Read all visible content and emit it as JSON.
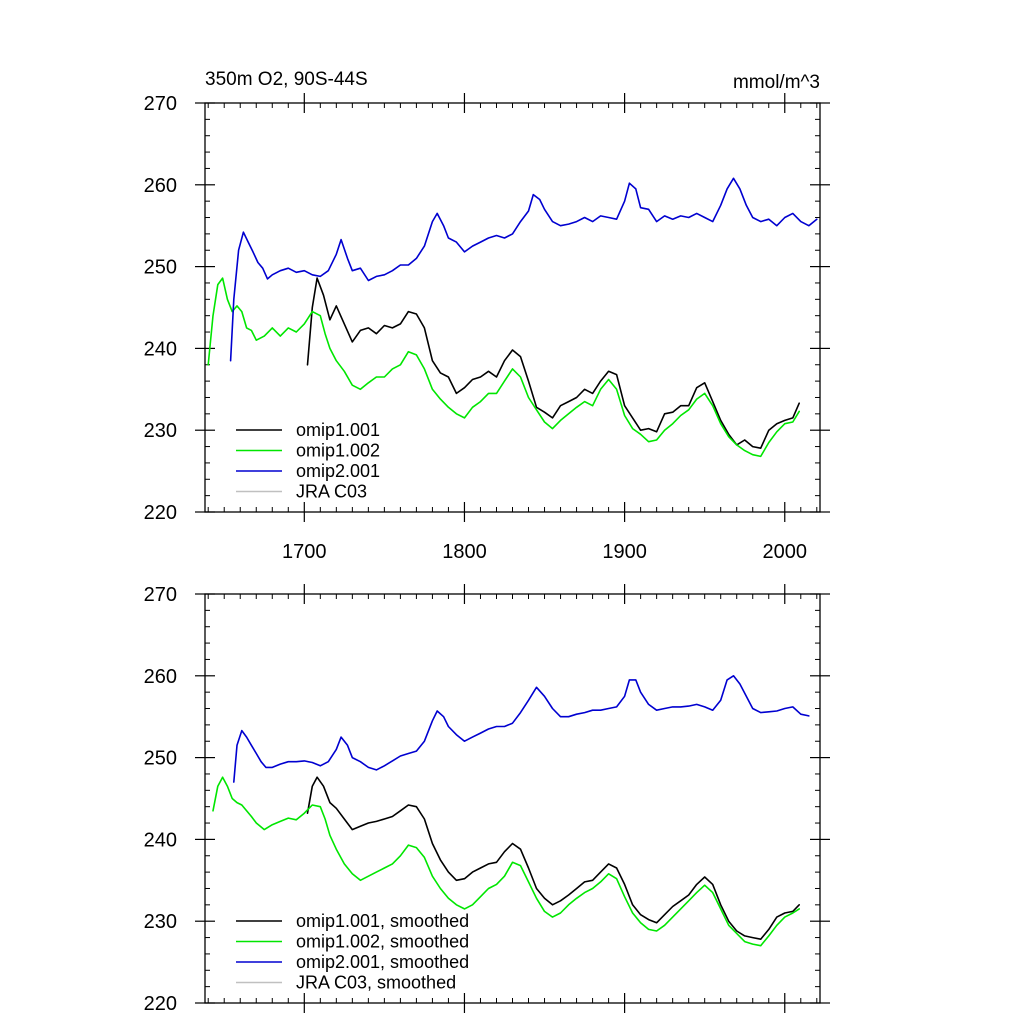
{
  "colors": {
    "omip1_001": "#000000",
    "omip1_002": "#00e600",
    "omip2_001": "#0000d0",
    "jra": "#c0c0c0",
    "axes": "#000000"
  },
  "chart_data": [
    {
      "type": "line",
      "title": "350m O2, 90S-44S",
      "units": "mmol/m^3",
      "xlim": [
        1638,
        2022
      ],
      "ylim": [
        220,
        270
      ],
      "xticks": [
        1700,
        1800,
        1900,
        2000
      ],
      "xtick_labels": [
        "1700",
        "1800",
        "1900",
        "2000"
      ],
      "yticks": [
        220,
        230,
        240,
        250,
        260,
        270
      ],
      "ytick_labels": [
        "220",
        "230",
        "240",
        "250",
        "260",
        "270"
      ],
      "legend_position": "bottom-left",
      "series": [
        {
          "name": "omip1.001",
          "color_key": "omip1_001",
          "x": [
            1702,
            1705,
            1708,
            1712,
            1716,
            1720,
            1725,
            1730,
            1735,
            1740,
            1745,
            1750,
            1755,
            1760,
            1765,
            1770,
            1775,
            1780,
            1785,
            1790,
            1795,
            1800,
            1805,
            1810,
            1815,
            1820,
            1825,
            1830,
            1835,
            1840,
            1845,
            1850,
            1855,
            1860,
            1865,
            1870,
            1875,
            1880,
            1885,
            1890,
            1895,
            1900,
            1905,
            1910,
            1915,
            1920,
            1925,
            1930,
            1935,
            1940,
            1945,
            1950,
            1955,
            1960,
            1965,
            1970,
            1975,
            1980,
            1985,
            1990,
            1995,
            2000,
            2005,
            2009
          ],
          "y": [
            238.0,
            245.0,
            248.6,
            246.5,
            243.5,
            245.2,
            243.0,
            240.8,
            242.2,
            242.5,
            241.8,
            242.8,
            242.5,
            243.0,
            244.5,
            244.2,
            242.5,
            238.5,
            237.0,
            236.5,
            234.5,
            235.2,
            236.2,
            236.5,
            237.2,
            236.5,
            238.5,
            239.8,
            239.0,
            236.0,
            232.8,
            232.2,
            231.5,
            233.0,
            233.5,
            234.0,
            235.0,
            234.5,
            236.0,
            237.2,
            236.8,
            233.0,
            231.5,
            230.0,
            230.2,
            229.8,
            232.0,
            232.2,
            233.0,
            233.0,
            235.2,
            235.8,
            233.5,
            231.2,
            229.5,
            228.2,
            228.8,
            228.0,
            227.8,
            230.0,
            230.8,
            231.2,
            231.5,
            233.3
          ]
        },
        {
          "name": "omip1.002",
          "color_key": "omip1_002",
          "x": [
            1640,
            1643,
            1646,
            1649,
            1652,
            1655,
            1658,
            1661,
            1664,
            1667,
            1670,
            1675,
            1680,
            1685,
            1690,
            1695,
            1700,
            1705,
            1710,
            1713,
            1716,
            1720,
            1725,
            1730,
            1735,
            1740,
            1745,
            1750,
            1755,
            1760,
            1765,
            1770,
            1775,
            1780,
            1785,
            1790,
            1795,
            1800,
            1805,
            1810,
            1815,
            1820,
            1825,
            1830,
            1835,
            1840,
            1845,
            1850,
            1855,
            1860,
            1865,
            1870,
            1875,
            1880,
            1885,
            1890,
            1895,
            1900,
            1905,
            1910,
            1915,
            1920,
            1925,
            1930,
            1935,
            1940,
            1945,
            1950,
            1955,
            1960,
            1965,
            1970,
            1975,
            1980,
            1985,
            1990,
            1995,
            2000,
            2005,
            2009
          ],
          "y": [
            238.0,
            244.0,
            247.8,
            248.6,
            246.0,
            244.5,
            245.2,
            244.5,
            242.5,
            242.2,
            241.0,
            241.5,
            242.5,
            241.5,
            242.5,
            242.0,
            243.0,
            244.5,
            244.0,
            241.8,
            240.0,
            238.5,
            237.2,
            235.5,
            235.0,
            235.8,
            236.5,
            236.5,
            237.5,
            238.0,
            239.6,
            239.2,
            237.5,
            235.0,
            233.8,
            232.8,
            232.0,
            231.5,
            232.8,
            233.5,
            234.5,
            234.5,
            236.0,
            237.5,
            236.5,
            234.0,
            232.5,
            231.0,
            230.2,
            231.2,
            232.0,
            232.8,
            233.5,
            233.0,
            235.0,
            236.2,
            235.0,
            231.8,
            230.2,
            229.5,
            228.6,
            228.8,
            230.0,
            230.8,
            231.8,
            232.5,
            233.8,
            234.5,
            233.0,
            230.8,
            229.2,
            228.2,
            227.5,
            227.0,
            226.8,
            228.5,
            229.8,
            230.8,
            231.0,
            232.3
          ]
        },
        {
          "name": "omip2.001",
          "color_key": "omip2_001",
          "x": [
            1654,
            1656,
            1659,
            1662,
            1665,
            1668,
            1671,
            1674,
            1677,
            1680,
            1685,
            1690,
            1695,
            1700,
            1705,
            1710,
            1715,
            1720,
            1723,
            1727,
            1730,
            1735,
            1740,
            1745,
            1750,
            1755,
            1760,
            1765,
            1770,
            1775,
            1780,
            1783,
            1787,
            1790,
            1795,
            1800,
            1805,
            1810,
            1815,
            1820,
            1825,
            1830,
            1835,
            1840,
            1843,
            1847,
            1850,
            1855,
            1860,
            1865,
            1870,
            1875,
            1880,
            1885,
            1890,
            1895,
            1900,
            1903,
            1907,
            1910,
            1915,
            1920,
            1925,
            1930,
            1935,
            1940,
            1945,
            1950,
            1955,
            1960,
            1964,
            1968,
            1972,
            1976,
            1980,
            1985,
            1990,
            1995,
            2000,
            2005,
            2010,
            2015,
            2020
          ],
          "y": [
            238.5,
            246.0,
            252.0,
            254.2,
            253.0,
            251.8,
            250.5,
            249.8,
            248.5,
            249.0,
            249.5,
            249.8,
            249.3,
            249.5,
            249.0,
            248.8,
            249.5,
            251.5,
            253.3,
            251.0,
            249.5,
            249.8,
            248.3,
            248.8,
            249.0,
            249.5,
            250.2,
            250.2,
            251.0,
            252.5,
            255.5,
            256.5,
            255.0,
            253.5,
            253.0,
            251.8,
            252.5,
            253.0,
            253.5,
            253.8,
            253.5,
            254.0,
            255.5,
            256.8,
            258.8,
            258.2,
            257.0,
            255.5,
            255.0,
            255.2,
            255.5,
            256.0,
            255.5,
            256.2,
            256.0,
            255.8,
            258.0,
            260.2,
            259.5,
            257.2,
            257.0,
            255.5,
            256.2,
            255.8,
            256.2,
            256.0,
            256.5,
            256.0,
            255.5,
            257.5,
            259.5,
            260.8,
            259.5,
            257.5,
            256.0,
            255.5,
            255.8,
            255.0,
            256.0,
            256.5,
            255.5,
            255.0,
            255.8
          ]
        },
        {
          "name": "JRA C03",
          "color_key": "jra",
          "x": [],
          "y": []
        }
      ]
    },
    {
      "type": "line",
      "title": "",
      "units": "",
      "xlim": [
        1638,
        2022
      ],
      "ylim": [
        220,
        270
      ],
      "xticks": [
        1700,
        1800,
        1900,
        2000
      ],
      "xtick_labels": [],
      "yticks": [
        220,
        230,
        240,
        250,
        260,
        270
      ],
      "ytick_labels": [
        "220",
        "230",
        "240",
        "250",
        "260",
        "270"
      ],
      "legend_position": "bottom-left",
      "series": [
        {
          "name": "omip1.001, smoothed",
          "color_key": "omip1_001",
          "x": [
            1702,
            1705,
            1708,
            1712,
            1716,
            1720,
            1725,
            1730,
            1735,
            1740,
            1745,
            1750,
            1755,
            1760,
            1765,
            1770,
            1775,
            1780,
            1785,
            1790,
            1795,
            1800,
            1805,
            1810,
            1815,
            1820,
            1825,
            1830,
            1835,
            1840,
            1845,
            1850,
            1855,
            1860,
            1865,
            1870,
            1875,
            1880,
            1885,
            1890,
            1895,
            1900,
            1905,
            1910,
            1915,
            1920,
            1925,
            1930,
            1935,
            1940,
            1945,
            1950,
            1955,
            1960,
            1965,
            1970,
            1975,
            1980,
            1985,
            1990,
            1995,
            2000,
            2005,
            2009
          ],
          "y": [
            243.2,
            246.5,
            247.6,
            246.5,
            244.5,
            243.8,
            242.5,
            241.2,
            241.6,
            242.0,
            242.2,
            242.5,
            242.8,
            243.5,
            244.2,
            244.0,
            242.5,
            239.5,
            237.5,
            236.0,
            235.0,
            235.2,
            236.0,
            236.5,
            237.0,
            237.2,
            238.5,
            239.5,
            238.8,
            236.5,
            234.0,
            232.8,
            232.0,
            232.5,
            233.2,
            234.0,
            234.8,
            235.0,
            236.0,
            237.0,
            236.5,
            234.5,
            232.0,
            230.8,
            230.2,
            229.8,
            230.8,
            231.8,
            232.5,
            233.2,
            234.5,
            235.4,
            234.5,
            232.0,
            230.0,
            228.8,
            228.2,
            228.0,
            227.8,
            229.0,
            230.5,
            231.0,
            231.2,
            232.0
          ]
        },
        {
          "name": "omip1.002, smoothed",
          "color_key": "omip1_002",
          "x": [
            1643,
            1646,
            1649,
            1652,
            1655,
            1658,
            1661,
            1664,
            1667,
            1670,
            1675,
            1680,
            1685,
            1690,
            1695,
            1700,
            1705,
            1710,
            1713,
            1716,
            1720,
            1725,
            1730,
            1735,
            1740,
            1745,
            1750,
            1755,
            1760,
            1765,
            1770,
            1775,
            1780,
            1785,
            1790,
            1795,
            1800,
            1805,
            1810,
            1815,
            1820,
            1825,
            1830,
            1835,
            1840,
            1845,
            1850,
            1855,
            1860,
            1865,
            1870,
            1875,
            1880,
            1885,
            1890,
            1895,
            1900,
            1905,
            1910,
            1915,
            1920,
            1925,
            1930,
            1935,
            1940,
            1945,
            1950,
            1955,
            1960,
            1965,
            1970,
            1975,
            1980,
            1985,
            1990,
            1995,
            2000,
            2005,
            2009
          ],
          "y": [
            243.5,
            246.5,
            247.6,
            246.5,
            245.0,
            244.5,
            244.2,
            243.5,
            242.8,
            242.0,
            241.2,
            241.8,
            242.2,
            242.6,
            242.4,
            243.2,
            244.2,
            244.0,
            242.5,
            240.5,
            238.8,
            237.0,
            235.8,
            235.0,
            235.5,
            236.0,
            236.5,
            237.0,
            238.0,
            239.3,
            239.0,
            237.8,
            235.5,
            234.0,
            232.8,
            232.0,
            231.5,
            232.0,
            233.0,
            234.0,
            234.5,
            235.5,
            237.2,
            236.8,
            234.8,
            232.8,
            231.2,
            230.5,
            231.0,
            232.0,
            232.8,
            233.5,
            234.0,
            234.8,
            235.8,
            235.2,
            233.0,
            231.0,
            229.8,
            229.0,
            228.8,
            229.5,
            230.5,
            231.5,
            232.5,
            233.5,
            234.4,
            233.5,
            231.5,
            229.5,
            228.5,
            227.5,
            227.2,
            227.0,
            228.2,
            229.5,
            230.5,
            231.0,
            231.5
          ]
        },
        {
          "name": "omip2.001, smoothed",
          "color_key": "omip2_001",
          "x": [
            1656,
            1658,
            1661,
            1664,
            1667,
            1670,
            1673,
            1676,
            1680,
            1685,
            1690,
            1695,
            1700,
            1705,
            1710,
            1715,
            1720,
            1723,
            1727,
            1730,
            1735,
            1740,
            1745,
            1750,
            1755,
            1760,
            1765,
            1770,
            1775,
            1780,
            1783,
            1787,
            1790,
            1795,
            1800,
            1805,
            1810,
            1815,
            1820,
            1825,
            1830,
            1835,
            1840,
            1845,
            1850,
            1855,
            1860,
            1865,
            1870,
            1875,
            1880,
            1885,
            1890,
            1895,
            1900,
            1903,
            1907,
            1910,
            1915,
            1920,
            1925,
            1930,
            1935,
            1940,
            1945,
            1950,
            1955,
            1960,
            1964,
            1968,
            1972,
            1976,
            1980,
            1985,
            1990,
            1995,
            2000,
            2005,
            2010,
            2015
          ],
          "y": [
            247.0,
            251.5,
            253.3,
            252.5,
            251.5,
            250.5,
            249.5,
            248.8,
            248.8,
            249.2,
            249.5,
            249.5,
            249.6,
            249.4,
            249.0,
            249.5,
            251.0,
            252.5,
            251.5,
            250.0,
            249.5,
            248.8,
            248.5,
            249.0,
            249.6,
            250.2,
            250.5,
            250.8,
            252.0,
            254.5,
            255.7,
            255.0,
            253.8,
            252.8,
            252.0,
            252.5,
            253.0,
            253.5,
            253.8,
            253.8,
            254.2,
            255.5,
            257.0,
            258.6,
            257.5,
            256.0,
            255.0,
            255.0,
            255.3,
            255.5,
            255.8,
            255.8,
            256.0,
            256.2,
            257.5,
            259.5,
            259.5,
            258.0,
            256.5,
            255.8,
            256.0,
            256.2,
            256.2,
            256.3,
            256.5,
            256.2,
            255.8,
            257.0,
            259.5,
            260.0,
            259.0,
            257.5,
            256.0,
            255.5,
            255.6,
            255.7,
            256.0,
            256.2,
            255.3,
            255.1
          ]
        },
        {
          "name": "JRA C03, smoothed",
          "color_key": "jra",
          "x": [],
          "y": []
        }
      ]
    }
  ]
}
